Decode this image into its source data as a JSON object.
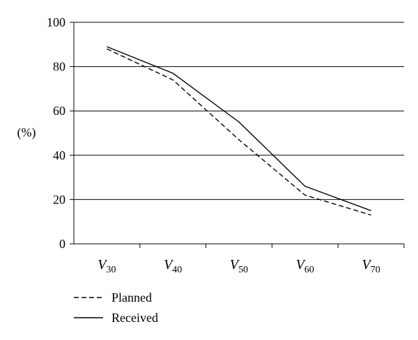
{
  "chart_data": {
    "type": "line",
    "title": "",
    "ylabel": "(%)",
    "xlabel": "",
    "ylim": [
      0,
      100
    ],
    "yticks": [
      "0",
      "20",
      "40",
      "60",
      "80",
      "100"
    ],
    "categories": [
      {
        "main": "V",
        "sub": "30"
      },
      {
        "main": "V",
        "sub": "40"
      },
      {
        "main": "V",
        "sub": "50"
      },
      {
        "main": "V",
        "sub": "60"
      },
      {
        "main": "V",
        "sub": "70"
      }
    ],
    "series": [
      {
        "name": "Planned",
        "style": "dashed",
        "color": "#000000",
        "values": [
          88,
          74,
          47,
          22,
          13
        ]
      },
      {
        "name": "Received",
        "style": "solid",
        "color": "#000000",
        "values": [
          89,
          77,
          55,
          26,
          15
        ]
      }
    ],
    "grid": true,
    "legend_position": "bottom-left"
  }
}
